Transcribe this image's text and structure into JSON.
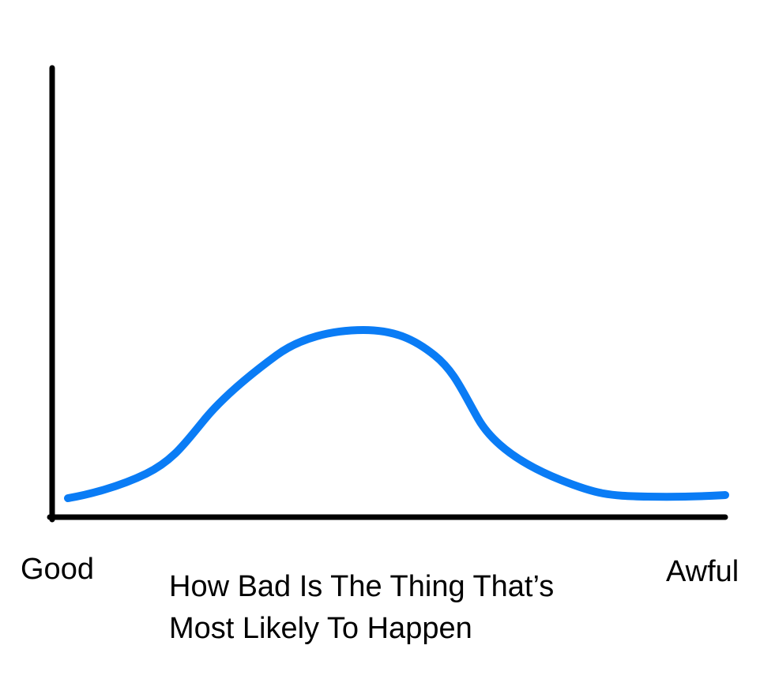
{
  "axis_labels": {
    "left": "Good",
    "right": "Awful"
  },
  "axis_title": {
    "lines": [
      "How Bad Is The Thing That’s",
      "Most Likely To Happen"
    ]
  }
}
